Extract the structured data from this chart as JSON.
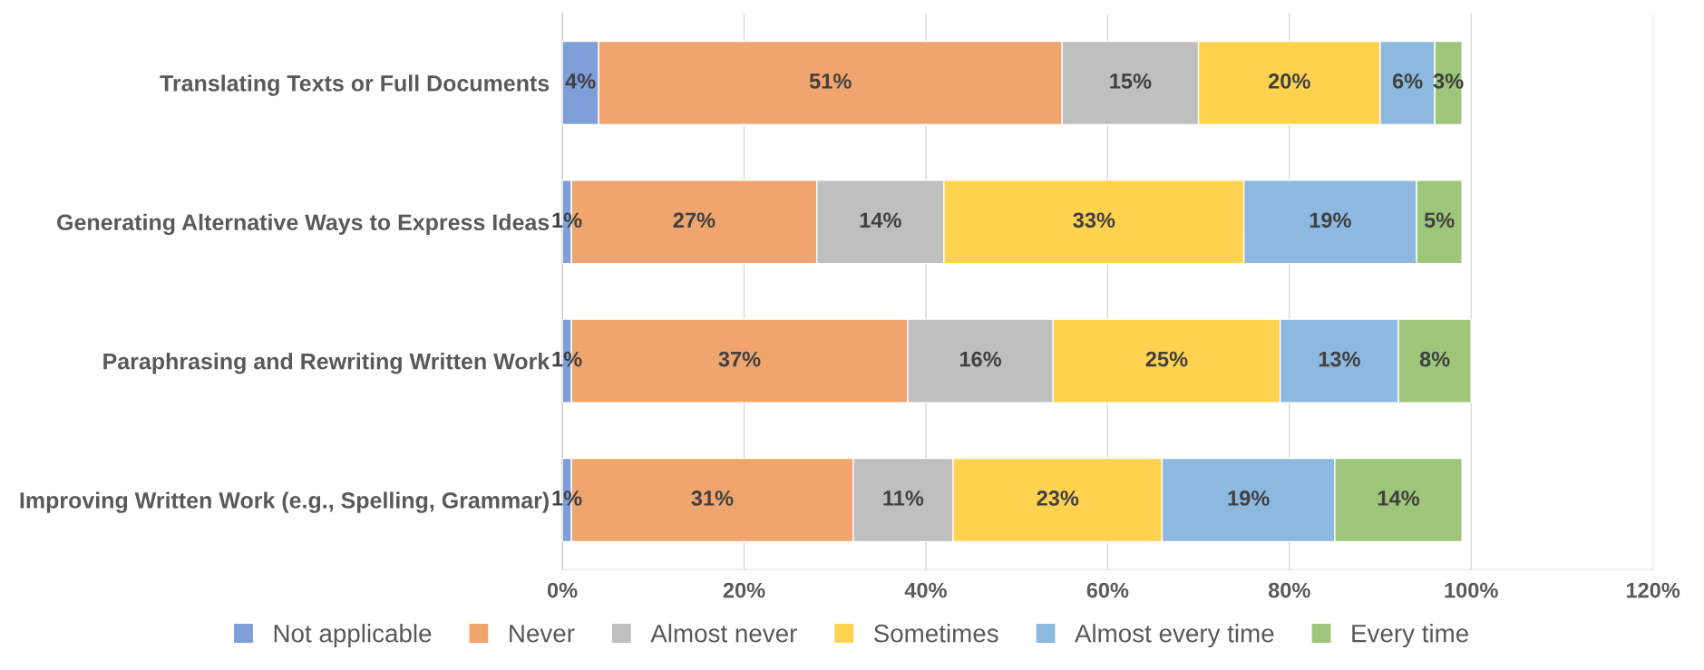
{
  "chart_data": {
    "type": "bar",
    "orientation": "horizontal",
    "stacked": true,
    "categories": [
      "Translating Texts or Full Documents",
      "Generating Alternative Ways to Express Ideas",
      "Paraphrasing and Rewriting Written Work",
      "Improving Written Work (e.g., Spelling, Grammar)"
    ],
    "series": [
      {
        "name": "Not applicable",
        "color": "#7f9fd9",
        "values": [
          4,
          1,
          1,
          1
        ],
        "value_labels": [
          "4%",
          "1%",
          "1%",
          "1%"
        ]
      },
      {
        "name": "Never",
        "color": "#f0a46e",
        "values": [
          51,
          27,
          37,
          31
        ],
        "value_labels": [
          "51%",
          "27%",
          "37%",
          "31%"
        ]
      },
      {
        "name": "Almost never",
        "color": "#bfbfbf",
        "values": [
          15,
          14,
          16,
          11
        ],
        "value_labels": [
          "15%",
          "14%",
          "16%",
          "11%"
        ]
      },
      {
        "name": "Sometimes",
        "color": "#ffd34f",
        "values": [
          20,
          33,
          25,
          23
        ],
        "value_labels": [
          "20%",
          "33%",
          "25%",
          "23%"
        ]
      },
      {
        "name": "Almost every time",
        "color": "#8db8e0",
        "values": [
          6,
          19,
          13,
          19
        ],
        "value_labels": [
          "6%",
          "19%",
          "13%",
          "19%"
        ]
      },
      {
        "name": "Every time",
        "color": "#9dc67a",
        "values": [
          3,
          5,
          8,
          14
        ],
        "value_labels": [
          "3%",
          "5%",
          "8%",
          "14%"
        ]
      }
    ],
    "xlim": [
      0,
      120
    ],
    "xticks": [
      {
        "value": 0,
        "label": "0%"
      },
      {
        "value": 20,
        "label": "20%"
      },
      {
        "value": 40,
        "label": "40%"
      },
      {
        "value": 60,
        "label": "60%"
      },
      {
        "value": 80,
        "label": "80%"
      },
      {
        "value": 100,
        "label": "100%"
      },
      {
        "value": 120,
        "label": "120%"
      }
    ],
    "grid": "x",
    "legend": "bottom"
  }
}
